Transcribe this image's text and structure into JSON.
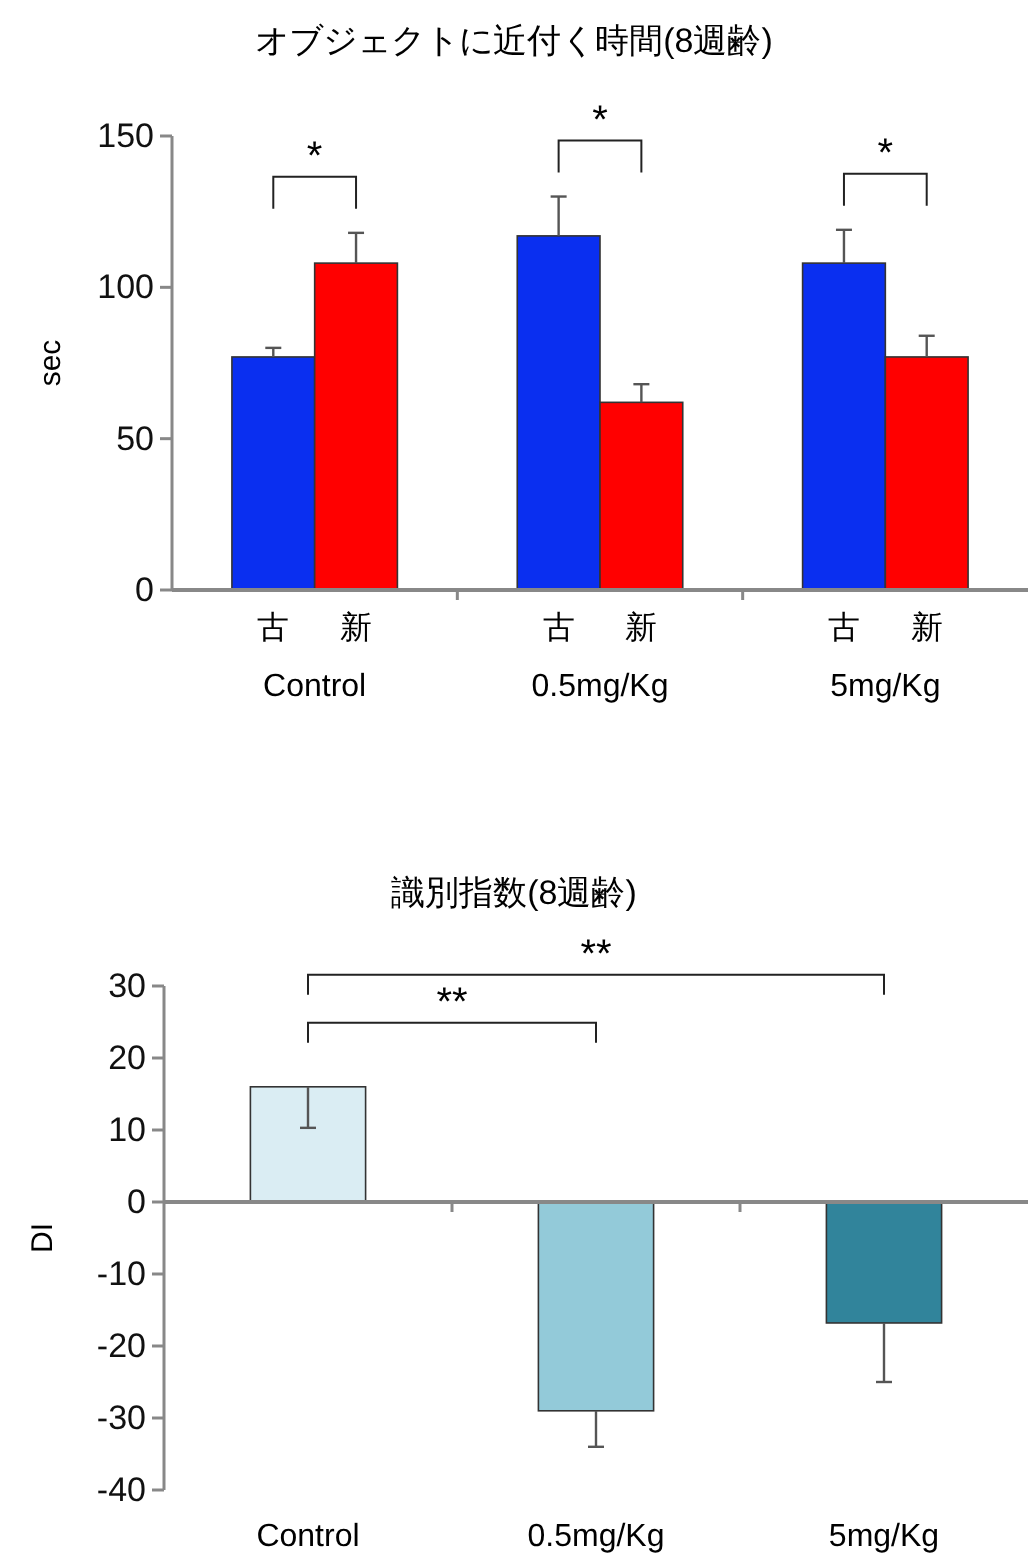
{
  "chart_data": [
    {
      "type": "bar",
      "title": "オブジェクトに近付く時間(8週齢)",
      "ylabel": "sec",
      "categories": [
        "Control",
        "0.5mg/Kg",
        "5mg/Kg"
      ],
      "series": [
        {
          "name": "古",
          "color": "#0a2ff0",
          "values": [
            77,
            117,
            108
          ],
          "errors": [
            [
              77,
              80
            ],
            [
              117,
              130
            ],
            [
              108,
              119
            ]
          ]
        },
        {
          "name": "新",
          "color": "#ff0000",
          "values": [
            108,
            62,
            77
          ],
          "errors": [
            [
              108,
              118
            ],
            [
              62,
              68
            ],
            [
              77,
              84
            ]
          ]
        }
      ],
      "ylim": [
        0,
        150
      ],
      "yticks": [
        0,
        50,
        100,
        150
      ],
      "annotations": [
        "*",
        "*",
        "*"
      ]
    },
    {
      "type": "bar",
      "title": "識別指数(8週齢)",
      "ylabel": "DI",
      "categories": [
        "Control",
        "0.5mg/Kg",
        "5mg/Kg"
      ],
      "values": [
        16,
        -29,
        -16.8
      ],
      "colors": [
        "#daedf3",
        "#93cad9",
        "#31849b"
      ],
      "errors": [
        [
          10.3,
          16
        ],
        [
          -34,
          -29
        ],
        [
          -25,
          -16.8
        ]
      ],
      "ylim": [
        -40,
        30
      ],
      "yticks": [
        -40,
        -30,
        -20,
        -10,
        0,
        10,
        20,
        30
      ],
      "annotations": [
        "**",
        "**"
      ]
    }
  ]
}
